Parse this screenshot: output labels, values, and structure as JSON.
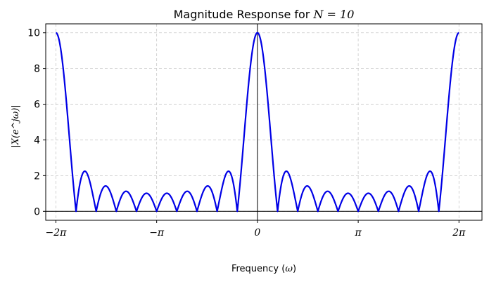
{
  "chart_data": {
    "type": "line",
    "title_text": "Magnitude Response for ",
    "title_math": "N = 10",
    "xlabel_text": "Frequency (",
    "xlabel_math": "ω",
    "xlabel_close": ")",
    "ylabel": "|X(e^jω)|",
    "N": 10,
    "xlim": [
      -6.6,
      7.0
    ],
    "ylim": [
      -0.5,
      10.5
    ],
    "grid": true,
    "grid_style": "dashed",
    "line_color": "#0000e6",
    "x_range": [
      -6.2832,
      6.2832
    ],
    "series": [
      {
        "function": "abs(sin(N*w/2)/sin(w/2))",
        "peaks": [
          {
            "x": -6.2832,
            "y": 10
          },
          {
            "x": 0,
            "y": 10
          },
          {
            "x": 6.2832,
            "y": 10
          }
        ],
        "sidelobe_peaks_approx": [
          2.25,
          1.42,
          1.13,
          1.02
        ]
      }
    ],
    "xticks": [
      {
        "value": -6.2832,
        "label": "−2π"
      },
      {
        "value": -3.1416,
        "label": "−π"
      },
      {
        "value": 0,
        "label": "0"
      },
      {
        "value": 3.1416,
        "label": "π"
      },
      {
        "value": 6.2832,
        "label": "2π"
      }
    ],
    "yticks": [
      {
        "value": 0,
        "label": "0"
      },
      {
        "value": 2,
        "label": "2"
      },
      {
        "value": 4,
        "label": "4"
      },
      {
        "value": 6,
        "label": "6"
      },
      {
        "value": 8,
        "label": "8"
      },
      {
        "value": 10,
        "label": "10"
      }
    ]
  }
}
